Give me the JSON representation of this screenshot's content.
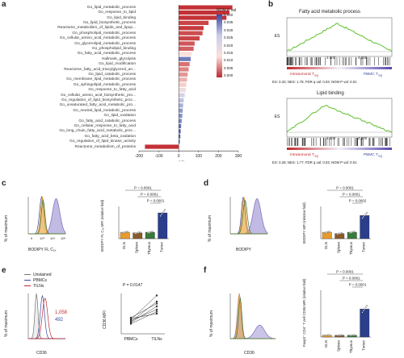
{
  "panels": {
    "a": "a",
    "b": "b",
    "c": "c",
    "d": "d",
    "e": "e",
    "f": "f"
  },
  "panel_a": {
    "genes": [
      "Go_lipid_metabolic_process",
      "Go_response_to_lipid",
      "Go_lipid_binding",
      "Go_lipid_biosynthetic_process",
      "Reactome_metabolism_of_lipids_and_lipop...",
      "Go_phospholipid_metabolic_process",
      "Go_cellular_amino_acid_metabolic_process",
      "Go_glycerolipid_metabolic_process",
      "Go_phospholipid_binding",
      "Go_fatty_acid_metabolic_process",
      "Hallmark_glycolysis",
      "Go_lipid_modification",
      "Reactome_fatty_acid_triacylglycerol_an...",
      "Go_lipid_catabolic_process",
      "Go_membrane_lipid_metabolic_process",
      "Go_sphingolipid_metabolic_process",
      "Go_response_to_fatty_acid",
      "Go_cellular_amino_acid_biosynthetic_pro...",
      "Go_regulation_of_lipid_biosynthetic_proc...",
      "Go_unsaturated_fatty_acid_metabolic_pro...",
      "Go_neutral_lipid_metabolic_process",
      "Go_lipid_oxidation",
      "Go_fatty_acid_catabolic_process",
      "Go_cellular_response_to_fatty_acid",
      "Go_long_chain_fatty_acid_metabolic_proc...",
      "Go_fatty_acid_beta_oxidation",
      "Go_regulation_of_lipid_kinase_activity",
      "Reactome_metabolism_of_proteins"
    ],
    "x_ticks": [
      "-200",
      "-100",
      "0",
      "100",
      "200",
      "300"
    ],
    "xlabel": "Hit genes",
    "legend_title": "NOM P val",
    "legend_ticks": [
      "0.040",
      "0.035",
      "0.030",
      "0.025",
      "0.020",
      "0.015",
      "0.010",
      "0.005",
      "0.000"
    ]
  },
  "panel_b": {
    "plot1_title": "Fatty acid metabolic process",
    "plot1_stats": "ES: 0.33; NES: 1.78; FDR q val: 0.03; NOM P val: 0.01",
    "plot2_title": "Lipid binding",
    "plot2_stats": "ES: 0.28; NES: 1.77; FDR q val: 0.03; NOM P val: 0.01",
    "ylabel": "ES",
    "x_ticks": [
      "2,000",
      "4,000"
    ],
    "left_label": "Intratumoral T",
    "left_sub": "reg",
    "right_label": "PBMC T",
    "right_sub": "reg"
  },
  "panel_c": {
    "hist_ylabel": "% of maximum",
    "hist_xlabel": "BODIPY FL C₁₆",
    "hist_xticks": [
      "0",
      "10³",
      "10⁴",
      "10⁵"
    ],
    "bar_ylabel": "BODIPY FL C₁₆ MFI (relative fold)",
    "categories": [
      "DLN",
      "Spleen",
      "Thymus",
      "Tumor"
    ],
    "pvals": [
      "P = 0.0001",
      "P = 0.0001",
      "P = 0.0001"
    ]
  },
  "panel_d": {
    "hist_ylabel": "% of maximum",
    "hist_xlabel": "BODIPY",
    "bar_ylabel": "BODIPY MFI (relative fold)",
    "categories": [
      "DLN",
      "Spleen",
      "Thymus",
      "Tumor"
    ],
    "pvals": [
      "P = 0.0002",
      "P = 0.0001",
      "P = 0.0001"
    ]
  },
  "panel_e": {
    "legend": [
      "Unstained",
      "PBMCs",
      "TILNs"
    ],
    "hist_ylabel": "% of maximum",
    "hist_xlabel": "CD36",
    "values": [
      "1,058",
      "492"
    ],
    "bar_ylabel": "CD36 MFI",
    "pval": "P = 0.0147",
    "categories": [
      "PBMCs",
      "TILNs"
    ]
  },
  "panel_f": {
    "hist_ylabel": "% of maximum",
    "hist_xlabel": "CD36",
    "bar_ylabel": "Foxp3⁺ CD4⁺ T cell CD36 MFI (relative fold)",
    "categories": [
      "DLN",
      "Spleen",
      "Thymus",
      "Tumor"
    ],
    "pvals": [
      "P = 0.0001",
      "P = 0.0001",
      "P = 0.0001"
    ]
  },
  "chart_data": [
    {
      "type": "bar",
      "panel": "a",
      "xlabel": "Hit genes",
      "xlim": [
        -200,
        300
      ],
      "categories": [
        "Go_lipid_metabolic_process",
        "Go_response_to_lipid",
        "Go_lipid_binding",
        "Go_lipid_biosynthetic_process",
        "Reactome_metabolism_of_lipids_and_lipop...",
        "Go_phospholipid_metabolic_process",
        "Go_cellular_amino_acid_metabolic_process",
        "Go_glycerolipid_metabolic_process",
        "Go_phospholipid_binding",
        "Go_fatty_acid_metabolic_process",
        "Hallmark_glycolysis",
        "Go_lipid_modification",
        "Reactome_fatty_acid_triacylglycerol_an...",
        "Go_lipid_catabolic_process",
        "Go_membrane_lipid_metabolic_process",
        "Go_sphingolipid_metabolic_process",
        "Go_response_to_fatty_acid",
        "Go_cellular_amino_acid_biosynthetic_pro...",
        "Go_regulation_of_lipid_biosynthetic_proc...",
        "Go_unsaturated_fatty_acid_metabolic_pro...",
        "Go_neutral_lipid_metabolic_process",
        "Go_lipid_oxidation",
        "Go_fatty_acid_catabolic_process",
        "Go_cellular_response_to_fatty_acid",
        "Go_long_chain_fatty_acid_metabolic_proc...",
        "Go_fatty_acid_beta_oxidation",
        "Go_regulation_of_lipid_kinase_activity",
        "Reactome_metabolism_of_proteins"
      ],
      "values": [
        270,
        255,
        240,
        150,
        125,
        120,
        105,
        80,
        75,
        65,
        60,
        55,
        50,
        45,
        42,
        38,
        35,
        30,
        25,
        22,
        20,
        18,
        15,
        12,
        10,
        8,
        5,
        -170
      ],
      "pvals": [
        0.001,
        0.001,
        0.001,
        0.003,
        0.002,
        0.004,
        0.003,
        0.005,
        0.006,
        0.02,
        0.035,
        0.008,
        0.01,
        0.012,
        0.015,
        0.018,
        0.022,
        0.025,
        0.028,
        0.03,
        0.032,
        0.033,
        0.034,
        0.036,
        0.037,
        0.038,
        0.039,
        0.001
      ]
    },
    {
      "type": "bar",
      "panel": "c",
      "categories": [
        "DLN",
        "Spleen",
        "Thymus",
        "Tumor"
      ],
      "values": [
        1.0,
        0.9,
        1.0,
        4.0
      ],
      "colors": [
        "#e89b2c",
        "#8a5a2b",
        "#3a7a3a",
        "#2b3e8c"
      ]
    },
    {
      "type": "bar",
      "panel": "d",
      "categories": [
        "DLN",
        "Spleen",
        "Thymus",
        "Tumor"
      ],
      "values": [
        1.0,
        0.8,
        1.0,
        3.6
      ],
      "colors": [
        "#e89b2c",
        "#8a5a2b",
        "#3a7a3a",
        "#2b3e8c"
      ]
    },
    {
      "type": "bar",
      "panel": "f",
      "categories": [
        "DLN",
        "Spleen",
        "Thymus",
        "Tumor"
      ],
      "values": [
        0.2,
        0.2,
        0.2,
        3.0
      ],
      "colors": [
        "#e89b2c",
        "#8a5a2b",
        "#3a7a3a",
        "#2b3e8c"
      ]
    }
  ],
  "colors": {
    "red": "#c0282d",
    "blue": "#3a4aa0",
    "green": "#6cc43c",
    "orange": "#e89b2c",
    "purple": "#a79cd6"
  }
}
